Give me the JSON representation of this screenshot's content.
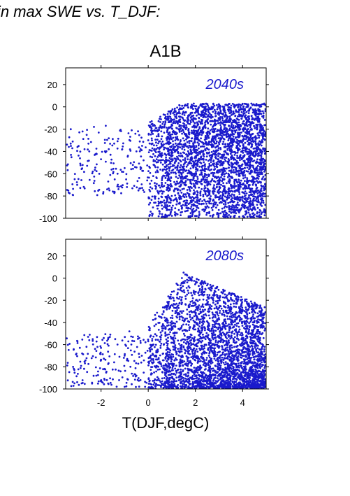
{
  "header": {
    "title": "in max SWE vs. T_DJF:",
    "scenario": "A1B"
  },
  "colors": {
    "points": "#1a1acc",
    "label": "#1a1acc"
  },
  "chart_data": [
    {
      "type": "scatter",
      "panel_label": "2040s",
      "xlabel": "",
      "ylabel": "",
      "xlim": [
        -3.5,
        5
      ],
      "ylim": [
        -100,
        35
      ],
      "yticks": [
        20,
        0,
        -20,
        -40,
        -60,
        -80,
        -100
      ],
      "xticks": [
        -2,
        0,
        2,
        4
      ],
      "show_xtick_labels": false,
      "series": [
        {
          "approx_point_count": 3500,
          "points": [
            [
              -3.5,
              -43
            ],
            [
              -3.0,
              -36
            ],
            [
              -2.7,
              -38
            ],
            [
              -2.5,
              -40
            ],
            [
              -2.3,
              -18
            ],
            [
              -2.2,
              -42
            ],
            [
              -2.0,
              -47
            ],
            [
              -1.8,
              -17
            ],
            [
              -1.6,
              -43
            ],
            [
              -1.5,
              -76
            ],
            [
              -1.3,
              -60
            ],
            [
              -1.1,
              -38
            ],
            [
              -1.0,
              -55
            ],
            [
              -0.7,
              -21
            ],
            [
              -0.5,
              -40
            ],
            [
              -0.3,
              -55
            ],
            [
              0.0,
              -30
            ],
            [
              0.4,
              -45
            ],
            [
              0.6,
              -63
            ],
            [
              1.0,
              -80
            ],
            [
              1.2,
              -10
            ],
            [
              1.5,
              -1
            ],
            [
              1.9,
              -95
            ],
            [
              2.3,
              0
            ],
            [
              2.7,
              -45
            ],
            [
              3.0,
              -100
            ],
            [
              3.5,
              -70
            ],
            [
              4.0,
              -20
            ],
            [
              4.5,
              -90
            ],
            [
              5.0,
              0
            ]
          ]
        }
      ],
      "density_description": "sparse for T below 0, dense from 0.5 to 5 degC, y spanning -100 to about 3"
    },
    {
      "type": "scatter",
      "panel_label": "2080s",
      "xlabel": "T(DJF,degC)",
      "ylabel": "",
      "xlim": [
        -3.5,
        5
      ],
      "ylim": [
        -100,
        35
      ],
      "yticks": [
        20,
        0,
        -20,
        -40,
        -60,
        -80,
        -100
      ],
      "xticks": [
        -2,
        0,
        2,
        4
      ],
      "xtick_labels": [
        "-2",
        "0",
        "2",
        "4"
      ],
      "show_xtick_labels": true,
      "series": [
        {
          "approx_point_count": 3500,
          "points": [
            [
              -3.5,
              -73
            ],
            [
              -3.0,
              -57
            ],
            [
              -2.8,
              -68
            ],
            [
              -2.5,
              -56
            ],
            [
              -2.2,
              -88
            ],
            [
              -2.0,
              -63
            ],
            [
              -1.7,
              -95
            ],
            [
              -1.4,
              -55
            ],
            [
              -1.0,
              -70
            ],
            [
              -0.8,
              -48
            ],
            [
              -0.5,
              -88
            ],
            [
              0.0,
              -57
            ],
            [
              0.5,
              -35
            ],
            [
              0.8,
              -75
            ],
            [
              1.2,
              -5
            ],
            [
              1.5,
              5
            ],
            [
              1.9,
              -95
            ],
            [
              2.3,
              -10
            ],
            [
              2.7,
              -50
            ],
            [
              3.0,
              -100
            ],
            [
              3.5,
              -30
            ],
            [
              4.0,
              -70
            ],
            [
              4.5,
              -95
            ],
            [
              5.0,
              -35
            ]
          ]
        }
      ],
      "density_description": "sparse for T below 0, dense from 0.5 to 5 degC, most dense near -90 to -100"
    }
  ]
}
